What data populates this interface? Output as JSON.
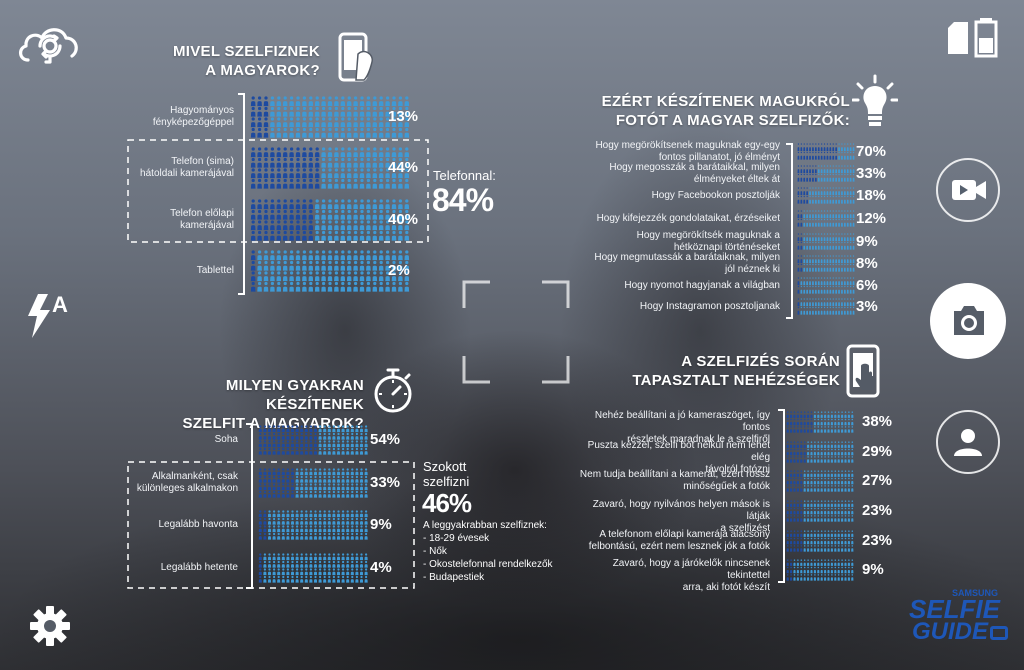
{
  "sections": {
    "device": {
      "title_l1": "MIVEL SZELFIZNEK",
      "title_l2": "A MAGYAROK?",
      "total_label": "Telefonnal:",
      "total_value": "84%"
    },
    "reasons": {
      "title_l1": "EZÉRT KÉSZÍTENEK MAGUKRÓL",
      "title_l2": "FOTÓT A MAGYAR SZELFIZŐK:"
    },
    "frequency": {
      "title_l1": "MILYEN GYAKRAN KÉSZÍTENEK",
      "title_l2": "SZELFIT A MAGYAROK?",
      "total_l1": "Szokott",
      "total_l2": "szelfizni",
      "total_value": "46%",
      "notes_title": "A leggyakrabban szelfiznek:",
      "notes": [
        "- 18-29 évesek",
        "- Nők",
        "- Okostelefonnal rendelkezők",
        "- Budapestiek"
      ]
    },
    "difficulties": {
      "title_l1": "A SZELFIZÉS SORÁN",
      "title_l2": "TAPASZTALT NEHÉZSÉGEK"
    }
  },
  "logo": {
    "l1": "SAMSUNG",
    "l2": "SELFIE",
    "l3": "GUIDE"
  },
  "flash_label": "A",
  "colors": {
    "dark_fill": "#1d4aa0",
    "light_fill": "#3e9ad6",
    "empty": "#2a68c0"
  },
  "icons": [
    "camera-switch-icon",
    "sd-battery-icon",
    "flash-auto-icon",
    "settings-gear-icon",
    "video-camera-icon",
    "photo-camera-icon",
    "person-icon",
    "smartphone-icon",
    "light-bulb-icon",
    "stopwatch-icon",
    "touch-hand-icon"
  ],
  "chart_data": [
    {
      "type": "bar",
      "title": "MIVEL SZELFIZNEK A MAGYAROK?",
      "categories": [
        [
          "Hagyományos",
          "fényképezőgéppel"
        ],
        [
          "Telefon (sima)",
          "hátoldali kamerájával"
        ],
        [
          "Telefon előlapi",
          "kamerájával"
        ],
        [
          "Tablettel"
        ]
      ],
      "values": [
        13,
        44,
        40,
        2
      ],
      "value_labels": [
        "13%",
        "44%",
        "40%",
        "2%"
      ]
    },
    {
      "type": "bar",
      "title": "EZÉRT KÉSZÍTENEK MAGUKRÓL FOTÓT A MAGYAR SZELFIZŐK:",
      "categories": [
        [
          "Hogy megörökítsenek maguknak egy-egy",
          "fontos pillanatot, jó élményt"
        ],
        [
          "Hogy megosszák a barátaikkal, milyen",
          "élményeket éltek át"
        ],
        [
          "Hogy Facebookon posztolják"
        ],
        [
          "Hogy kifejezzék gondolataikat, érzéseiket"
        ],
        [
          "Hogy megörökítsék maguknak a",
          "hétköznapi történéseket"
        ],
        [
          "Hogy megmutassák a barátaiknak, milyen",
          "jól néznek ki"
        ],
        [
          "Hogy nyomot hagyjanak a világban"
        ],
        [
          "Hogy Instagramon posztoljanak"
        ]
      ],
      "values": [
        70,
        33,
        18,
        12,
        9,
        8,
        6,
        3
      ],
      "value_labels": [
        "70%",
        "33%",
        "18%",
        "12%",
        "9%",
        "8%",
        "6%",
        "3%"
      ]
    },
    {
      "type": "bar",
      "title": "MILYEN GYAKRAN KÉSZÍTENEK SZELFIT A MAGYAROK?",
      "categories": [
        [
          "Soha"
        ],
        [
          "Alkalmanként, csak",
          "különleges alkalmakon"
        ],
        [
          "Legalább havonta"
        ],
        [
          "Legalább hetente"
        ]
      ],
      "values": [
        54,
        33,
        9,
        4
      ],
      "value_labels": [
        "54%",
        "33%",
        "9%",
        "4%"
      ]
    },
    {
      "type": "bar",
      "title": "A SZELFIZÉS SORÁN TAPASZTALT NEHÉZSÉGEK",
      "categories": [
        [
          "Nehéz beállítani a jó kameraszöget, így fontos",
          "részletek maradnak le a szelfiről"
        ],
        [
          "Puszta kézzel, szelfi bot nélkül nem lehet elég",
          "távolról fotózni"
        ],
        [
          "Nem tudja beállítani a kamerát, ezért rossz",
          "minőségűek a fotók"
        ],
        [
          "Zavaró, hogy nyilvános helyen mások is látják",
          "a szelfizést"
        ],
        [
          "A telefonom előlapi kamerája alacsony",
          "felbontású, ezért nem lesznek jók a fotók"
        ],
        [
          "Zavaró, hogy a járókelők nincsenek tekintettel",
          "arra, aki fotót készít"
        ]
      ],
      "values": [
        38,
        29,
        27,
        23,
        23,
        9
      ],
      "value_labels": [
        "38%",
        "29%",
        "27%",
        "23%",
        "23%",
        "9%"
      ]
    }
  ]
}
